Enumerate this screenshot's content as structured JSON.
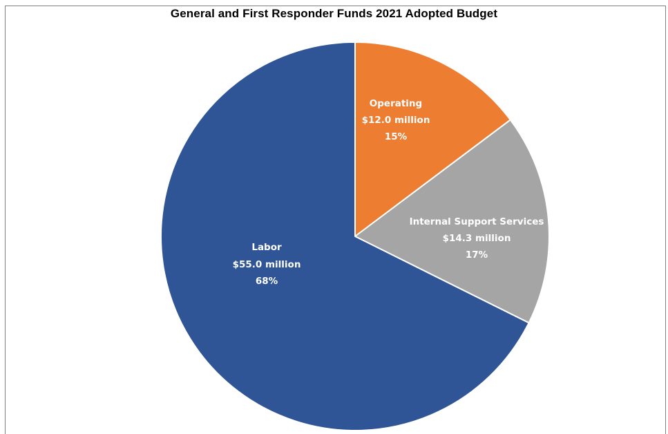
{
  "chart_data": {
    "type": "pie",
    "title": "General and First Responder Funds 2021 Adopted Budget",
    "slices": [
      {
        "label": "Operating",
        "amount": "$12.0 million",
        "value": 12.0,
        "percent": "15%",
        "color": "#ed7d31"
      },
      {
        "label": "Internal Support Services",
        "amount": "$14.3 million",
        "value": 14.3,
        "percent": "17%",
        "color": "#a5a5a5"
      },
      {
        "label": "Labor",
        "amount": "$55.0  million",
        "value": 55.0,
        "percent": "68%",
        "color": "#2f5597"
      }
    ],
    "legend": "none"
  }
}
